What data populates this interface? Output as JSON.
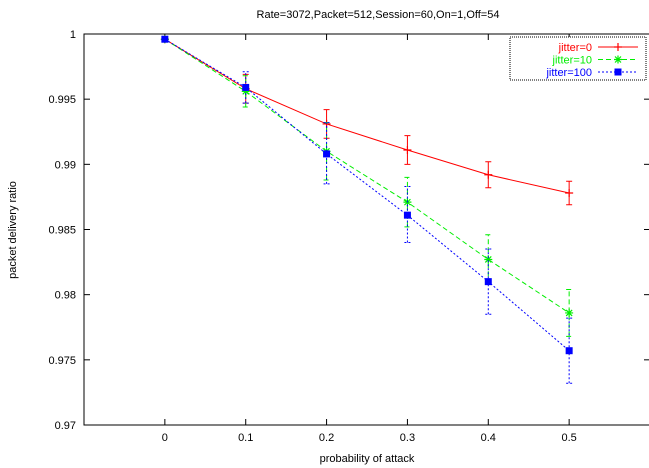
{
  "chart_data": {
    "type": "line",
    "title": "Rate=3072,Packet=512,Session=60,On=1,Off=54",
    "xlabel": "probability of attack",
    "ylabel": "packet delivery ratio",
    "xlim": [
      -0.1,
      0.6
    ],
    "ylim": [
      0.97,
      1.0
    ],
    "x_ticks": [
      0,
      0.1,
      0.2,
      0.3,
      0.4,
      0.5
    ],
    "x_tick_labels": [
      "0",
      "0.1",
      "0.2",
      "0.3",
      "0.4",
      "0.5"
    ],
    "y_ticks": [
      0.97,
      0.975,
      0.98,
      0.985,
      0.99,
      0.995,
      1.0
    ],
    "y_tick_labels": [
      "0.97",
      "0.975",
      "0.98",
      "0.985",
      "0.99",
      "0.995",
      "1"
    ],
    "grid": false,
    "legend_position": "top-right",
    "x": [
      0,
      0.1,
      0.2,
      0.3,
      0.4,
      0.5
    ],
    "series": [
      {
        "name": "jitter=0",
        "color": "#ff0000",
        "line_style": "solid",
        "marker": "plus",
        "values": [
          0.9996,
          0.9958,
          0.9931,
          0.9911,
          0.9892,
          0.9878
        ],
        "err_low": [
          0.9996,
          0.9947,
          0.992,
          0.99,
          0.9882,
          0.9869
        ],
        "err_high": [
          0.9996,
          0.9969,
          0.9942,
          0.9922,
          0.9902,
          0.9887
        ]
      },
      {
        "name": "jitter=10",
        "color": "#00ee00",
        "line_style": "dashed",
        "marker": "star",
        "values": [
          0.9996,
          0.9956,
          0.991,
          0.9871,
          0.9827,
          0.9786
        ],
        "err_low": [
          0.9996,
          0.9944,
          0.9888,
          0.9852,
          0.9808,
          0.9768
        ],
        "err_high": [
          0.9996,
          0.9968,
          0.9932,
          0.989,
          0.9846,
          0.9804
        ]
      },
      {
        "name": "jitter=100",
        "color": "#0000ff",
        "line_style": "dotted",
        "marker": "square",
        "values": [
          0.9996,
          0.9959,
          0.9908,
          0.9861,
          0.981,
          0.9757
        ],
        "err_low": [
          0.9996,
          0.9947,
          0.9885,
          0.984,
          0.9785,
          0.9732
        ],
        "err_high": [
          0.9996,
          0.9971,
          0.9932,
          0.9883,
          0.9835,
          0.9782
        ]
      }
    ]
  }
}
